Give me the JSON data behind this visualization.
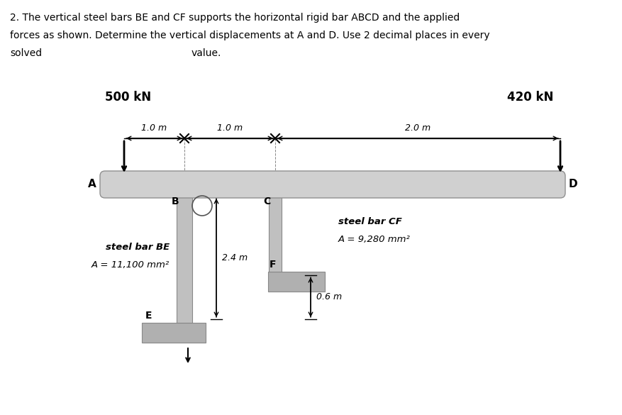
{
  "bg_color": "#ffffff",
  "bar_color": "#d0d0d0",
  "steel_bar_color": "#c0c0c0",
  "base_color": "#b0b0b0",
  "force_500": "500 kN",
  "force_420": "420 kN",
  "label_A": "A",
  "label_B": "B",
  "label_C": "C",
  "label_D": "D",
  "label_E": "E",
  "label_F": "F",
  "dim_1": "1.0 m",
  "dim_2": "1.0 m",
  "dim_3": "2.0 m",
  "dim_24": "2.4 m",
  "dim_06": "0.6 m",
  "steel_BE_line1": "steel bar BE",
  "steel_BE_line2": "A = 11,100 mm²",
  "steel_CF_line1": "steel bar CF",
  "steel_CF_line2": "A = 9,280 mm²",
  "title_line1": "2. The vertical steel bars BE and CF supports the horizontal rigid bar ABCD and the applied",
  "title_line2": "forces as shown. Determine the vertical displacements at A and D. Use 2 decimal places in every",
  "title_line3_left": "solved",
  "title_line3_right": "value."
}
